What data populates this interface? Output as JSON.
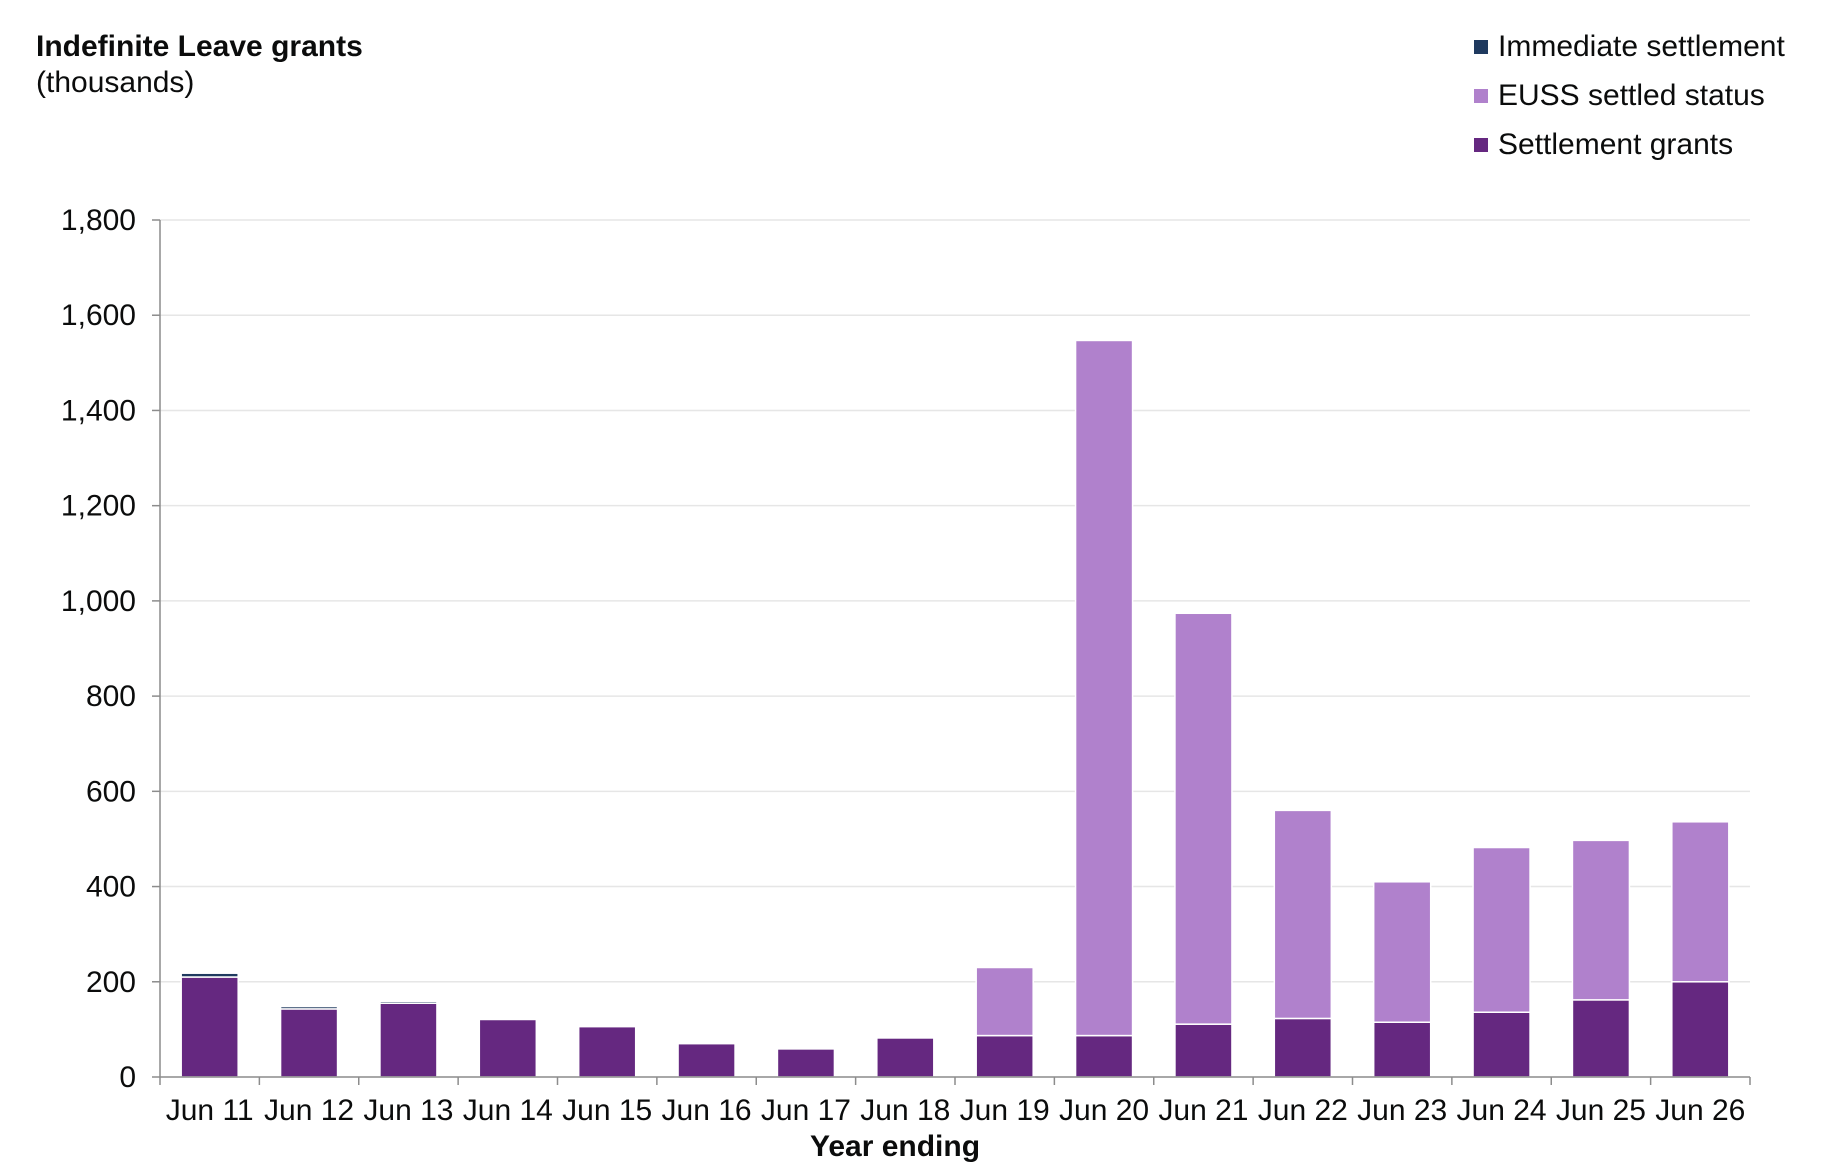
{
  "chart_data": {
    "type": "bar",
    "stacked": true,
    "title": "Indefinite Leave grants",
    "subtitle": "(thousands)",
    "xlabel": "Year ending",
    "ylabel": "",
    "ylim": [
      0,
      1800
    ],
    "yticks": [
      0,
      200,
      400,
      600,
      800,
      1000,
      1200,
      1400,
      1600,
      1800
    ],
    "ytick_labels": [
      "0",
      "200",
      "400",
      "600",
      "800",
      "1,000",
      "1,200",
      "1,400",
      "1,600",
      "1,800"
    ],
    "grid": true,
    "legend_position": "top-right",
    "categories": [
      "Jun 11",
      "Jun 12",
      "Jun 13",
      "Jun 14",
      "Jun 15",
      "Jun 16",
      "Jun 17",
      "Jun 18",
      "Jun 19",
      "Jun 20",
      "Jun 21",
      "Jun 22",
      "Jun 23",
      "Jun 24",
      "Jun 25",
      "Jun 26"
    ],
    "series": [
      {
        "name": "Settlement grants",
        "color": "#652880",
        "values": [
          210,
          143,
          155,
          121,
          106,
          70,
          59,
          82,
          87,
          87,
          111,
          123,
          115,
          136,
          162,
          200
        ]
      },
      {
        "name": "EUSS settled status",
        "color": "#b081cc",
        "values": [
          0,
          0,
          0,
          0,
          0,
          0,
          0,
          0,
          143,
          1460,
          863,
          437,
          295,
          346,
          335,
          336
        ]
      },
      {
        "name": "Immediate settlement",
        "color": "#1f3a5f",
        "values": [
          8,
          5,
          4,
          3,
          2,
          0,
          0,
          0,
          0,
          0,
          0,
          0,
          0,
          0,
          0,
          0
        ]
      }
    ],
    "legend_order": [
      "Immediate settlement",
      "EUSS settled status",
      "Settlement grants"
    ]
  }
}
